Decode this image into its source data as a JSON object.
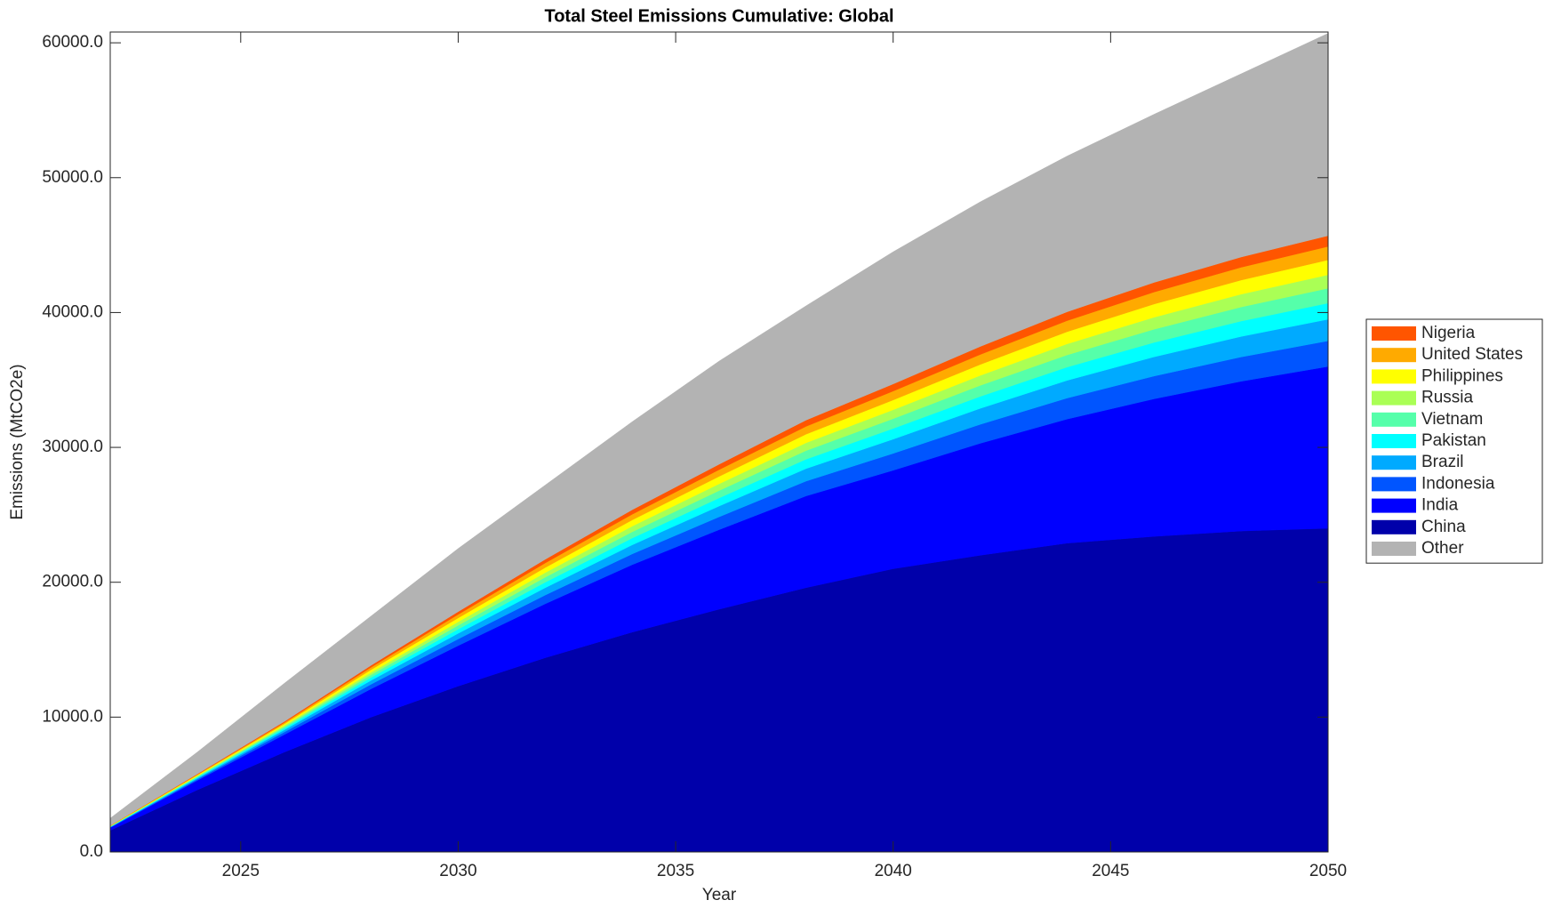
{
  "chart_data": {
    "type": "stacked-area",
    "title": "Total Steel Emissions Cumulative: Global",
    "x_label": "Year",
    "y_label": "Emissions (MtCO2e)",
    "x": [
      2022,
      2024,
      2026,
      2028,
      2030,
      2032,
      2034,
      2036,
      2038,
      2040,
      2042,
      2044,
      2046,
      2048,
      2050
    ],
    "xlim": [
      2022,
      2050
    ],
    "xticks": [
      2025,
      2030,
      2035,
      2040,
      2045,
      2050
    ],
    "ylim": [
      0,
      60800
    ],
    "yticks": [
      {
        "value": 0,
        "label": "0.0"
      },
      {
        "value": 10000,
        "label": "10000.0"
      },
      {
        "value": 20000,
        "label": "20000.0"
      },
      {
        "value": 30000,
        "label": "30000.0"
      },
      {
        "value": 40000,
        "label": "40000.0"
      },
      {
        "value": 50000,
        "label": "50000.0"
      },
      {
        "value": 60000,
        "label": "60000.0"
      }
    ],
    "series": [
      {
        "name": "China",
        "color": "#0000aa",
        "values": [
          1600,
          4600,
          7400,
          10000,
          12300,
          14400,
          16300,
          18000,
          19600,
          21000,
          22000,
          22900,
          23400,
          23800,
          24000
        ]
      },
      {
        "name": "India",
        "color": "#0000ff",
        "values": [
          200,
          700,
          1300,
          2100,
          3000,
          4000,
          5000,
          5900,
          6800,
          7300,
          8300,
          9200,
          10200,
          11100,
          12000
        ]
      },
      {
        "name": "Indonesia",
        "color": "#0055ff",
        "values": [
          30,
          95,
          190,
          342,
          494,
          646,
          798,
          950,
          1102,
          1254,
          1406,
          1558,
          1691,
          1805,
          1900
        ]
      },
      {
        "name": "Brazil",
        "color": "#00aaff",
        "values": [
          26,
          80,
          160,
          288,
          416,
          544,
          672,
          800,
          928,
          1056,
          1184,
          1312,
          1424,
          1520,
          1600
        ]
      },
      {
        "name": "Pakistan",
        "color": "#00ffff",
        "values": [
          19,
          60,
          120,
          216,
          312,
          408,
          504,
          600,
          696,
          792,
          888,
          984,
          1068,
          1140,
          1200
        ]
      },
      {
        "name": "Vietnam",
        "color": "#55ffaa",
        "values": [
          18,
          55,
          110,
          198,
          286,
          374,
          462,
          550,
          638,
          726,
          814,
          902,
          979,
          1045,
          1100
        ]
      },
      {
        "name": "Russia",
        "color": "#aaff55",
        "values": [
          16,
          50,
          100,
          180,
          260,
          340,
          420,
          500,
          580,
          660,
          740,
          820,
          890,
          950,
          1000
        ]
      },
      {
        "name": "Philippines",
        "color": "#ffff00",
        "values": [
          18,
          55,
          110,
          198,
          286,
          374,
          462,
          550,
          638,
          726,
          814,
          902,
          979,
          1045,
          1100
        ]
      },
      {
        "name": "United States",
        "color": "#ffaa00",
        "values": [
          16,
          50,
          100,
          180,
          260,
          340,
          420,
          500,
          580,
          660,
          740,
          820,
          890,
          950,
          1000
        ]
      },
      {
        "name": "Nigeria",
        "color": "#ff5500",
        "values": [
          13,
          40,
          80,
          144,
          208,
          272,
          336,
          400,
          464,
          528,
          592,
          656,
          712,
          760,
          800
        ]
      },
      {
        "name": "Other",
        "color": "#b3b3b3",
        "values": [
          545,
          1615,
          2830,
          3654,
          4678,
          5502,
          6526,
          7650,
          8474,
          9798,
          10722,
          11546,
          12467,
          13585,
          15000
        ]
      }
    ]
  }
}
